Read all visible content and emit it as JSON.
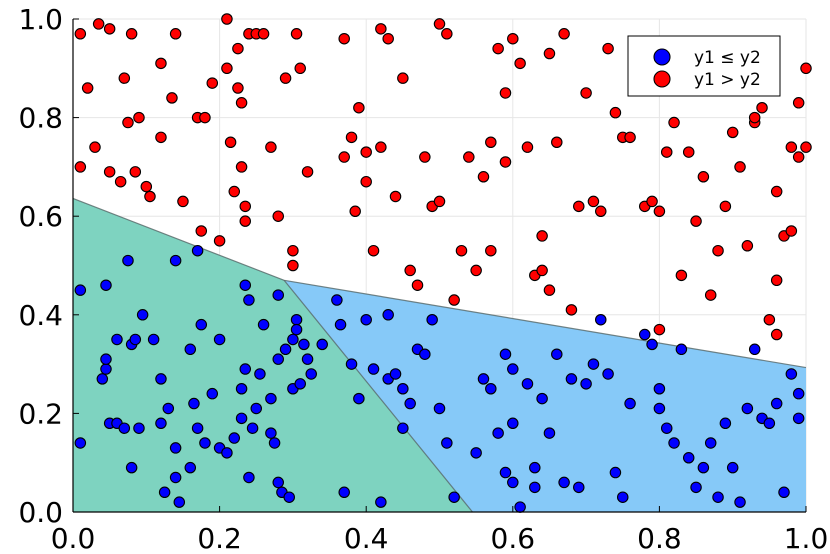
{
  "chart_data": {
    "type": "scatter",
    "xlim": [
      0,
      1
    ],
    "ylim": [
      0,
      1
    ],
    "x_ticks": [
      "0.0",
      "0.2",
      "0.4",
      "0.6",
      "0.8",
      "1.0"
    ],
    "y_ticks": [
      "0.0",
      "0.2",
      "0.4",
      "0.6",
      "0.8",
      "1.0"
    ],
    "grid": true,
    "legend_position": "top-right",
    "legend": [
      {
        "label": "y1 ≤ y2",
        "color": "#0000ff"
      },
      {
        "label": "y1 > y2",
        "color": "#ff0000"
      }
    ],
    "regions": [
      {
        "color": "#7ed3c0",
        "polygon": [
          [
            0,
            0
          ],
          [
            0,
            0.636
          ],
          [
            0.288,
            0.47
          ],
          [
            0.545,
            0
          ]
        ]
      },
      {
        "color": "#86c9f8",
        "polygon": [
          [
            0.288,
            0.47
          ],
          [
            1,
            0.293
          ],
          [
            1,
            0
          ],
          [
            0.545,
            0
          ]
        ]
      }
    ],
    "boundary_lines": [
      {
        "points": [
          [
            0,
            0.636
          ],
          [
            0.288,
            0.47
          ],
          [
            1,
            0.293
          ]
        ]
      },
      {
        "points": [
          [
            0.288,
            0.47
          ],
          [
            0.545,
            0
          ]
        ]
      }
    ],
    "series": [
      {
        "name": "y1 ≤ y2",
        "color": "#0000ff",
        "points": [
          [
            0.01,
            0.45
          ],
          [
            0.01,
            0.14
          ],
          [
            0.04,
            0.27
          ],
          [
            0.045,
            0.29
          ],
          [
            0.045,
            0.46
          ],
          [
            0.045,
            0.31
          ],
          [
            0.05,
            0.18
          ],
          [
            0.06,
            0.35
          ],
          [
            0.06,
            0.18
          ],
          [
            0.07,
            0.17
          ],
          [
            0.075,
            0.51
          ],
          [
            0.08,
            0.34
          ],
          [
            0.08,
            0.09
          ],
          [
            0.085,
            0.35
          ],
          [
            0.09,
            0.17
          ],
          [
            0.095,
            0.4
          ],
          [
            0.11,
            0.35
          ],
          [
            0.12,
            0.27
          ],
          [
            0.12,
            0.18
          ],
          [
            0.125,
            0.04
          ],
          [
            0.13,
            0.21
          ],
          [
            0.14,
            0.51
          ],
          [
            0.14,
            0.07
          ],
          [
            0.14,
            0.13
          ],
          [
            0.145,
            0.02
          ],
          [
            0.16,
            0.33
          ],
          [
            0.16,
            0.09
          ],
          [
            0.165,
            0.22
          ],
          [
            0.17,
            0.53
          ],
          [
            0.17,
            0.17
          ],
          [
            0.175,
            0.38
          ],
          [
            0.18,
            0.14
          ],
          [
            0.19,
            0.24
          ],
          [
            0.2,
            0.35
          ],
          [
            0.2,
            0.13
          ],
          [
            0.21,
            0.12
          ],
          [
            0.22,
            0.15
          ],
          [
            0.23,
            0.19
          ],
          [
            0.23,
            0.25
          ],
          [
            0.235,
            0.29
          ],
          [
            0.235,
            0.46
          ],
          [
            0.24,
            0.43
          ],
          [
            0.24,
            0.07
          ],
          [
            0.245,
            0.17
          ],
          [
            0.25,
            0.21
          ],
          [
            0.255,
            0.28
          ],
          [
            0.26,
            0.38
          ],
          [
            0.27,
            0.23
          ],
          [
            0.27,
            0.16
          ],
          [
            0.275,
            0.14
          ],
          [
            0.28,
            0.44
          ],
          [
            0.28,
            0.31
          ],
          [
            0.28,
            0.06
          ],
          [
            0.285,
            0.04
          ],
          [
            0.29,
            0.33
          ],
          [
            0.295,
            0.03
          ],
          [
            0.3,
            0.35
          ],
          [
            0.3,
            0.25
          ],
          [
            0.305,
            0.39
          ],
          [
            0.305,
            0.37
          ],
          [
            0.31,
            0.26
          ],
          [
            0.315,
            0.34
          ],
          [
            0.32,
            0.31
          ],
          [
            0.325,
            0.28
          ],
          [
            0.34,
            0.34
          ],
          [
            0.36,
            0.43
          ],
          [
            0.365,
            0.38
          ],
          [
            0.37,
            0.04
          ],
          [
            0.38,
            0.3
          ],
          [
            0.39,
            0.23
          ],
          [
            0.4,
            0.39
          ],
          [
            0.41,
            0.29
          ],
          [
            0.42,
            0.02
          ],
          [
            0.43,
            0.27
          ],
          [
            0.43,
            0.4
          ],
          [
            0.44,
            0.28
          ],
          [
            0.45,
            0.25
          ],
          [
            0.45,
            0.17
          ],
          [
            0.46,
            0.22
          ],
          [
            0.47,
            0.33
          ],
          [
            0.48,
            0.32
          ],
          [
            0.49,
            0.39
          ],
          [
            0.5,
            0.21
          ],
          [
            0.51,
            0.14
          ],
          [
            0.52,
            0.03
          ],
          [
            0.55,
            0.12
          ],
          [
            0.56,
            0.27
          ],
          [
            0.57,
            0.25
          ],
          [
            0.58,
            0.16
          ],
          [
            0.59,
            0.08
          ],
          [
            0.59,
            0.32
          ],
          [
            0.6,
            0.29
          ],
          [
            0.6,
            0.18
          ],
          [
            0.6,
            0.06
          ],
          [
            0.61,
            0.01
          ],
          [
            0.62,
            0.26
          ],
          [
            0.63,
            0.09
          ],
          [
            0.63,
            0.05
          ],
          [
            0.64,
            0.23
          ],
          [
            0.65,
            0.16
          ],
          [
            0.66,
            0.32
          ],
          [
            0.67,
            0.06
          ],
          [
            0.68,
            0.27
          ],
          [
            0.69,
            0.05
          ],
          [
            0.7,
            0.26
          ],
          [
            0.71,
            0.3
          ],
          [
            0.72,
            0.39
          ],
          [
            0.73,
            0.28
          ],
          [
            0.74,
            0.08
          ],
          [
            0.75,
            0.03
          ],
          [
            0.76,
            0.22
          ],
          [
            0.78,
            0.36
          ],
          [
            0.79,
            0.34
          ],
          [
            0.8,
            0.25
          ],
          [
            0.8,
            0.21
          ],
          [
            0.81,
            0.17
          ],
          [
            0.82,
            0.14
          ],
          [
            0.83,
            0.33
          ],
          [
            0.84,
            0.11
          ],
          [
            0.85,
            0.05
          ],
          [
            0.86,
            0.09
          ],
          [
            0.87,
            0.14
          ],
          [
            0.88,
            0.03
          ],
          [
            0.89,
            0.18
          ],
          [
            0.9,
            0.09
          ],
          [
            0.91,
            0.02
          ],
          [
            0.92,
            0.21
          ],
          [
            0.93,
            0.33
          ],
          [
            0.94,
            0.19
          ],
          [
            0.95,
            0.18
          ],
          [
            0.96,
            0.22
          ],
          [
            0.97,
            0.04
          ],
          [
            0.98,
            0.28
          ],
          [
            0.99,
            0.24
          ],
          [
            0.99,
            0.19
          ]
        ]
      },
      {
        "name": "y1 > y2",
        "color": "#ff0000",
        "points": [
          [
            0.01,
            0.97
          ],
          [
            0.01,
            0.7
          ],
          [
            0.02,
            0.86
          ],
          [
            0.03,
            0.74
          ],
          [
            0.035,
            0.99
          ],
          [
            0.05,
            0.98
          ],
          [
            0.05,
            0.69
          ],
          [
            0.065,
            0.67
          ],
          [
            0.07,
            0.88
          ],
          [
            0.075,
            0.79
          ],
          [
            0.08,
            0.97
          ],
          [
            0.085,
            0.69
          ],
          [
            0.09,
            0.8
          ],
          [
            0.1,
            0.66
          ],
          [
            0.105,
            0.64
          ],
          [
            0.12,
            0.91
          ],
          [
            0.12,
            0.76
          ],
          [
            0.135,
            0.84
          ],
          [
            0.14,
            0.97
          ],
          [
            0.15,
            0.63
          ],
          [
            0.17,
            0.8
          ],
          [
            0.175,
            0.57
          ],
          [
            0.18,
            0.8
          ],
          [
            0.19,
            0.87
          ],
          [
            0.2,
            0.55
          ],
          [
            0.21,
            0.9
          ],
          [
            0.21,
            1.0
          ],
          [
            0.215,
            0.75
          ],
          [
            0.22,
            0.65
          ],
          [
            0.225,
            0.94
          ],
          [
            0.225,
            0.86
          ],
          [
            0.23,
            0.7
          ],
          [
            0.23,
            0.83
          ],
          [
            0.235,
            0.62
          ],
          [
            0.235,
            0.59
          ],
          [
            0.24,
            0.97
          ],
          [
            0.25,
            0.97
          ],
          [
            0.26,
            0.97
          ],
          [
            0.27,
            0.74
          ],
          [
            0.28,
            0.6
          ],
          [
            0.29,
            0.88
          ],
          [
            0.3,
            0.53
          ],
          [
            0.3,
            0.5
          ],
          [
            0.305,
            0.97
          ],
          [
            0.31,
            0.9
          ],
          [
            0.32,
            0.69
          ],
          [
            0.37,
            0.96
          ],
          [
            0.37,
            0.72
          ],
          [
            0.38,
            0.76
          ],
          [
            0.385,
            0.61
          ],
          [
            0.39,
            0.82
          ],
          [
            0.4,
            0.73
          ],
          [
            0.4,
            0.67
          ],
          [
            0.41,
            0.53
          ],
          [
            0.42,
            0.98
          ],
          [
            0.42,
            0.74
          ],
          [
            0.43,
            0.96
          ],
          [
            0.44,
            0.64
          ],
          [
            0.45,
            0.88
          ],
          [
            0.46,
            0.49
          ],
          [
            0.47,
            0.46
          ],
          [
            0.48,
            0.72
          ],
          [
            0.49,
            0.62
          ],
          [
            0.5,
            0.99
          ],
          [
            0.5,
            0.63
          ],
          [
            0.51,
            0.97
          ],
          [
            0.52,
            0.43
          ],
          [
            0.53,
            0.53
          ],
          [
            0.54,
            0.72
          ],
          [
            0.55,
            0.49
          ],
          [
            0.56,
            0.68
          ],
          [
            0.57,
            0.75
          ],
          [
            0.57,
            0.53
          ],
          [
            0.58,
            0.94
          ],
          [
            0.59,
            0.85
          ],
          [
            0.59,
            0.71
          ],
          [
            0.6,
            0.96
          ],
          [
            0.61,
            0.91
          ],
          [
            0.62,
            0.74
          ],
          [
            0.63,
            0.48
          ],
          [
            0.64,
            0.49
          ],
          [
            0.64,
            0.56
          ],
          [
            0.65,
            0.45
          ],
          [
            0.65,
            0.93
          ],
          [
            0.66,
            0.75
          ],
          [
            0.67,
            0.97
          ],
          [
            0.68,
            0.41
          ],
          [
            0.69,
            0.62
          ],
          [
            0.7,
            0.85
          ],
          [
            0.71,
            0.63
          ],
          [
            0.72,
            0.61
          ],
          [
            0.73,
            0.94
          ],
          [
            0.74,
            0.81
          ],
          [
            0.75,
            0.76
          ],
          [
            0.76,
            0.76
          ],
          [
            0.77,
            0.91
          ],
          [
            0.78,
            0.62
          ],
          [
            0.79,
            0.63
          ],
          [
            0.8,
            0.61
          ],
          [
            0.8,
            0.37
          ],
          [
            0.81,
            0.73
          ],
          [
            0.82,
            0.79
          ],
          [
            0.83,
            0.48
          ],
          [
            0.84,
            0.73
          ],
          [
            0.85,
            0.59
          ],
          [
            0.86,
            0.68
          ],
          [
            0.87,
            0.44
          ],
          [
            0.88,
            0.53
          ],
          [
            0.89,
            0.62
          ],
          [
            0.9,
            0.77
          ],
          [
            0.91,
            0.7
          ],
          [
            0.92,
            0.54
          ],
          [
            0.93,
            0.79
          ],
          [
            0.93,
            0.8
          ],
          [
            0.94,
            0.82
          ],
          [
            0.95,
            0.39
          ],
          [
            0.96,
            0.47
          ],
          [
            0.96,
            0.36
          ],
          [
            0.96,
            0.65
          ],
          [
            0.97,
            0.56
          ],
          [
            0.98,
            0.57
          ],
          [
            0.98,
            0.74
          ],
          [
            0.99,
            0.72
          ],
          [
            0.99,
            0.83
          ],
          [
            1.0,
            0.74
          ],
          [
            1.0,
            0.9
          ]
        ]
      }
    ]
  }
}
